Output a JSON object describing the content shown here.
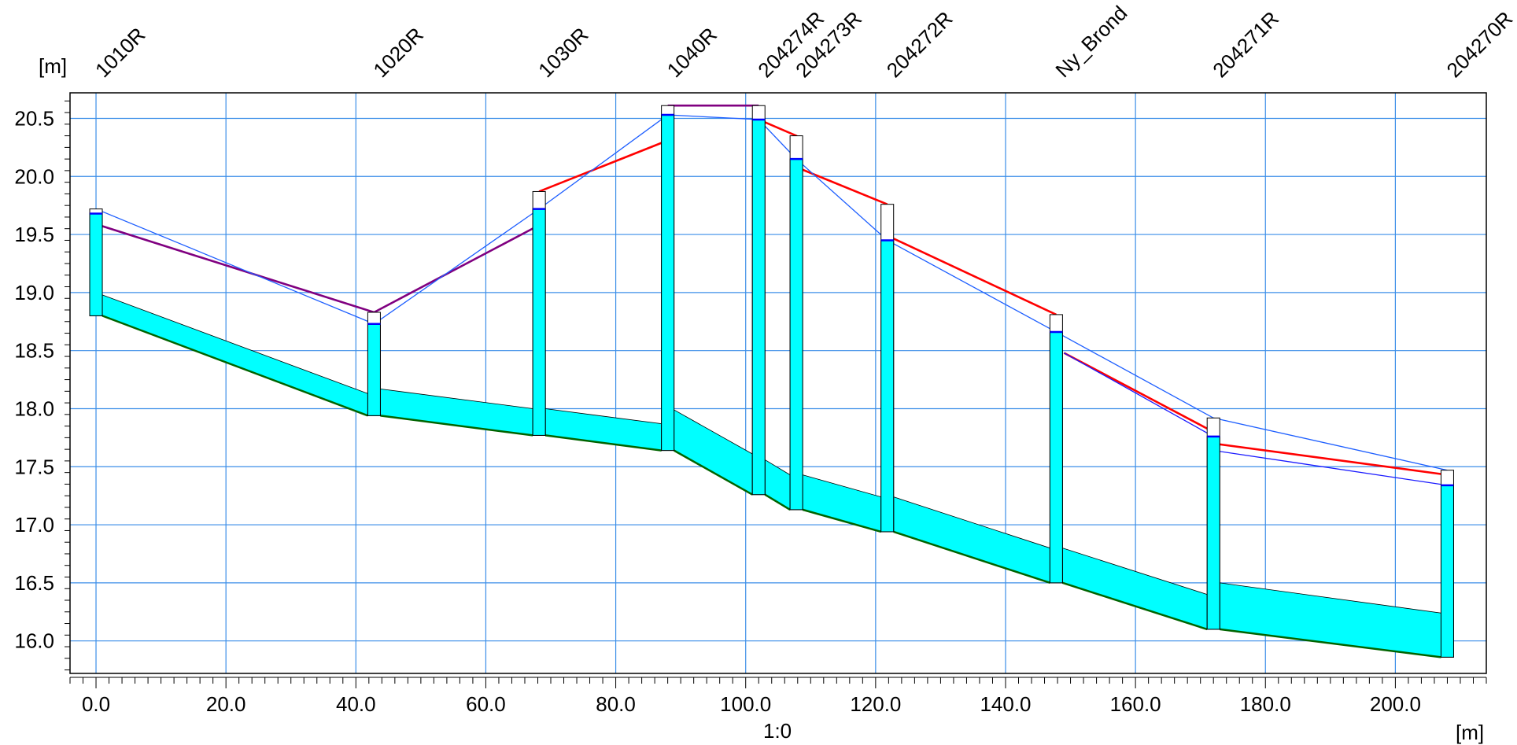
{
  "chart_data": {
    "type": "line",
    "y_unit": "[m]",
    "x_unit": "[m]",
    "scale_label": "1:0",
    "xlim": [
      -4,
      214
    ],
    "ylim": [
      15.72,
      20.72
    ],
    "x_ticks": [
      0,
      20,
      40,
      60,
      80,
      100,
      120,
      140,
      160,
      180,
      200
    ],
    "x_tick_labels": [
      "0.0",
      "20.0",
      "40.0",
      "60.0",
      "80.0",
      "100.0",
      "120.0",
      "140.0",
      "160.0",
      "180.0",
      "200.0"
    ],
    "y_ticks": [
      16.0,
      16.5,
      17.0,
      17.5,
      18.0,
      18.5,
      19.0,
      19.5,
      20.0,
      20.5
    ],
    "y_tick_labels": [
      "16.0",
      "16.5",
      "17.0",
      "17.5",
      "18.0",
      "18.5",
      "19.0",
      "19.5",
      "20.0",
      "20.5"
    ],
    "grid": true,
    "colors": {
      "grid": "#3b8ee8",
      "manhole_fill": "#00ffff",
      "pipe_fill": "#00ffff",
      "invert_line": "#006400",
      "ground_line": "#3b6fe0",
      "water_level_red": "#ff0000",
      "water_level_purple": "#800080",
      "critical_level_blue": "#0000ff",
      "outline": "#000000"
    },
    "stations": [
      {
        "label": "1010R",
        "x": 0.0,
        "bottom": 18.8,
        "top": 19.72,
        "water": 19.68
      },
      {
        "label": "1020R",
        "x": 42.8,
        "bottom": 17.94,
        "top": 18.83,
        "water": 18.73
      },
      {
        "label": "1030R",
        "x": 68.2,
        "bottom": 17.77,
        "top": 19.87,
        "water": 19.72
      },
      {
        "label": "1040R",
        "x": 88.0,
        "bottom": 17.64,
        "top": 20.61,
        "water": 20.53
      },
      {
        "label": "204274R",
        "x": 102.0,
        "bottom": 17.26,
        "top": 20.61,
        "water": 20.49
      },
      {
        "label": "204273R",
        "x": 107.8,
        "bottom": 17.13,
        "top": 20.35,
        "water": 20.15
      },
      {
        "label": "204272R",
        "x": 121.8,
        "bottom": 16.94,
        "top": 19.76,
        "water": 19.45
      },
      {
        "label": "Ny_Brond",
        "x": 147.8,
        "bottom": 16.5,
        "top": 18.81,
        "water": 18.66
      },
      {
        "label": "204271R",
        "x": 172.0,
        "bottom": 16.1,
        "top": 17.92,
        "water": 17.76
      },
      {
        "label": "204270R",
        "x": 208.0,
        "bottom": 15.86,
        "top": 17.47,
        "water": 17.34
      }
    ],
    "pipes": [
      {
        "from": "1010R",
        "to": "1020R",
        "up_invert": 18.8,
        "down_invert": 17.94,
        "up_crown": 18.98,
        "down_crown": 18.13
      },
      {
        "from": "1020R",
        "to": "1030R",
        "up_invert": 17.94,
        "down_invert": 17.77,
        "up_crown": 18.17,
        "down_crown": 18.0
      },
      {
        "from": "1030R",
        "to": "1040R",
        "up_invert": 17.77,
        "down_invert": 17.64,
        "up_crown": 18.0,
        "down_crown": 17.87
      },
      {
        "from": "1040R",
        "to": "204274R",
        "up_invert": 17.64,
        "down_invert": 17.26,
        "up_crown": 17.99,
        "down_crown": 17.61
      },
      {
        "from": "204274R",
        "to": "204273R",
        "up_invert": 17.26,
        "down_invert": 17.13,
        "up_crown": 17.56,
        "down_crown": 17.43
      },
      {
        "from": "204273R",
        "to": "204272R",
        "up_invert": 17.13,
        "down_invert": 16.94,
        "up_crown": 17.43,
        "down_crown": 17.24
      },
      {
        "from": "204272R",
        "to": "Ny_Brond",
        "up_invert": 16.94,
        "down_invert": 16.5,
        "up_crown": 17.24,
        "down_crown": 16.8
      },
      {
        "from": "Ny_Brond",
        "to": "204271R",
        "up_invert": 16.5,
        "down_invert": 16.1,
        "up_crown": 16.8,
        "down_crown": 16.4
      },
      {
        "from": "204271R",
        "to": "204270R",
        "up_invert": 16.1,
        "down_invert": 15.86,
        "up_crown": 16.5,
        "down_crown": 16.24
      }
    ],
    "series": [
      {
        "color": "#800080",
        "segments": [
          [
            [
              0.5,
              19.58
            ],
            [
              42.8,
              18.83
            ],
            [
              68.2,
              19.58
            ]
          ],
          [
            [
              88.0,
              20.61
            ],
            [
              102.0,
              20.61
            ]
          ]
        ]
      },
      {
        "color": "#ff0000",
        "segments": [
          [
            [
              68.2,
              19.87
            ],
            [
              88.0,
              20.31
            ]
          ],
          [
            [
              102.0,
              20.49
            ],
            [
              107.8,
              20.35
            ],
            [
              107.8,
              20.08
            ],
            [
              121.8,
              19.76
            ]
          ],
          [
            [
              121.8,
              19.49
            ],
            [
              147.8,
              18.81
            ]
          ],
          [
            [
              149.0,
              18.48
            ],
            [
              172.0,
              17.8
            ],
            [
              172.0,
              17.7
            ],
            [
              208.0,
              17.43
            ]
          ]
        ]
      },
      {
        "color": "#1e5fff",
        "segments": [
          [
            [
              0.0,
              19.72
            ],
            [
              42.8,
              18.73
            ],
            [
              68.2,
              19.72
            ],
            [
              88.0,
              20.53
            ],
            [
              102.0,
              20.49
            ],
            [
              107.8,
              20.15
            ],
            [
              121.8,
              19.45
            ],
            [
              147.8,
              18.66
            ],
            [
              172.0,
              17.92
            ],
            [
              208.0,
              17.47
            ]
          ]
        ]
      },
      {
        "color": "#1a1aff",
        "segments": [
          [
            [
              149.0,
              18.48
            ],
            [
              172.0,
              17.76
            ],
            [
              172.0,
              17.64
            ],
            [
              208.0,
              17.34
            ]
          ]
        ]
      }
    ]
  }
}
